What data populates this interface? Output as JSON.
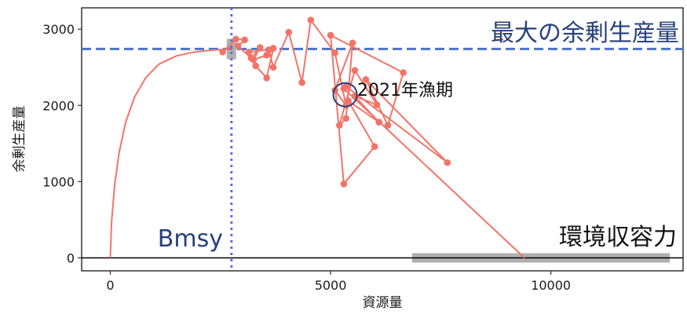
{
  "chart_data": {
    "type": "line",
    "xlabel": "資源量",
    "ylabel": "余剰生産量",
    "xlim": [
      -650,
      13000
    ],
    "ylim": [
      -170,
      3280
    ],
    "x_ticks": [
      0,
      5000,
      10000
    ],
    "x_tick_labels": [
      "0",
      "5000",
      "10000"
    ],
    "y_ticks": [
      0,
      1000,
      2000,
      3000
    ],
    "y_tick_labels": [
      "0",
      "1000",
      "2000",
      "3000"
    ],
    "grid": false,
    "legend": "none",
    "bmsy": 2750,
    "msy": 2740,
    "carrying_capacity": 9400,
    "carrying_capacity_range": [
      6850,
      12700
    ],
    "annotations": {
      "msy_label": "最大の余剰生産量",
      "bmsy_label": "Bmsy",
      "k_label": "環境収容力",
      "current_label": "2021年漁期"
    },
    "current_point": {
      "x": 5330,
      "y": 2140
    },
    "production_curve": [
      [
        0,
        0
      ],
      [
        30,
        480
      ],
      [
        100,
        960
      ],
      [
        200,
        1380
      ],
      [
        350,
        1780
      ],
      [
        550,
        2110
      ],
      [
        800,
        2360
      ],
      [
        1100,
        2540
      ],
      [
        1500,
        2650
      ],
      [
        1900,
        2700
      ],
      [
        2300,
        2725
      ],
      [
        2750,
        2740
      ]
    ],
    "observed_series": [
      [
        2550,
        2700
      ],
      [
        2850,
        2870
      ],
      [
        3050,
        2860
      ],
      [
        2900,
        2780
      ],
      [
        3200,
        2620
      ],
      [
        3400,
        2760
      ],
      [
        3250,
        2600
      ],
      [
        3550,
        2660
      ],
      [
        3700,
        2750
      ],
      [
        3550,
        2360
      ],
      [
        3300,
        2520
      ],
      [
        3150,
        2700
      ],
      [
        3600,
        2730
      ],
      [
        3700,
        2500
      ],
      [
        4050,
        2960
      ],
      [
        4350,
        2300
      ],
      [
        4550,
        3120
      ],
      [
        5100,
        2690
      ],
      [
        5350,
        2000
      ],
      [
        5100,
        2200
      ],
      [
        5500,
        2820
      ],
      [
        5350,
        1830
      ],
      [
        5200,
        1740
      ],
      [
        5550,
        2460
      ],
      [
        6050,
        2010
      ],
      [
        5550,
        2120
      ],
      [
        6100,
        1780
      ],
      [
        5400,
        2060
      ],
      [
        6000,
        1460
      ],
      [
        5300,
        970
      ],
      [
        5000,
        2920
      ],
      [
        6650,
        2430
      ],
      [
        6300,
        1740
      ],
      [
        5800,
        2340
      ],
      [
        7650,
        1250
      ],
      [
        5350,
        2250
      ],
      [
        5300,
        2220
      ],
      [
        9400,
        0
      ]
    ],
    "colors": {
      "series": "#f27468",
      "msy_line": "#4a74c8",
      "bmsy_line": "#5a6fe0",
      "annotation_text": "#27407a",
      "highlight_circle": "#27407a",
      "band": "#b0b0b0"
    }
  }
}
